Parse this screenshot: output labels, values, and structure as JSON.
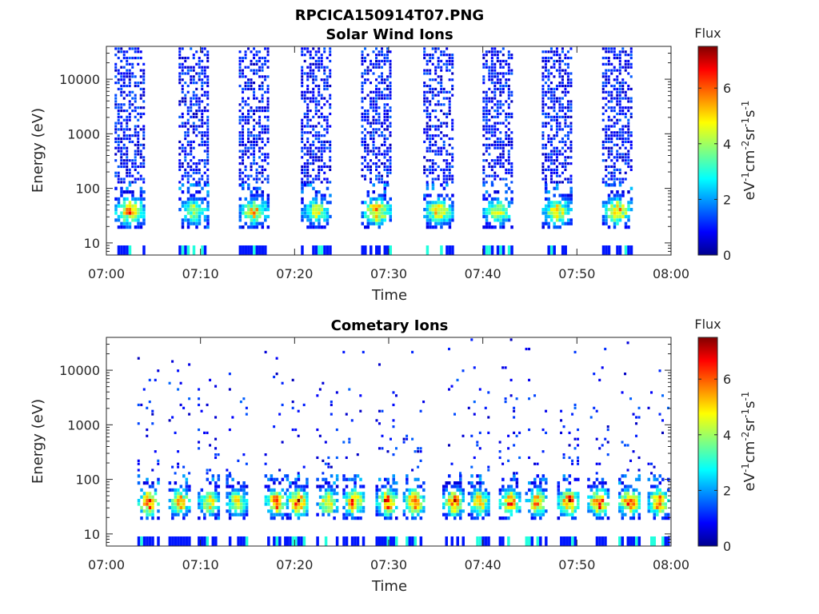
{
  "figure": {
    "filename_title": "RPCICA150914T07.PNG"
  },
  "colors": {
    "axis": "#262626",
    "background": "#ffffff",
    "colormap": "jet"
  },
  "chart_data": [
    {
      "type": "heatmap",
      "title": "Solar Wind Ions",
      "xlabel": "Time",
      "ylabel": "Energy (eV)",
      "x_ticks": [
        "07:00",
        "07:10",
        "07:20",
        "07:30",
        "07:40",
        "07:50",
        "08:00"
      ],
      "y_ticks": [
        "10",
        "100",
        "1000",
        "10000"
      ],
      "y_scale": "log",
      "ylim": [
        6,
        40000
      ],
      "xlim_minutes": [
        0,
        60
      ],
      "colorbar": {
        "title": "Flux",
        "label": "eV-1cm-2sr-1s-1",
        "label_parts": [
          {
            "t": "eV",
            "s": false
          },
          {
            "t": "-1",
            "s": true
          },
          {
            "t": "cm",
            "s": false
          },
          {
            "t": "-2",
            "s": true
          },
          {
            "t": "sr",
            "s": false
          },
          {
            "t": "-1",
            "s": true
          },
          {
            "t": "s",
            "s": false
          },
          {
            "t": "-1",
            "s": true
          }
        ],
        "ticks": [
          "0",
          "2",
          "4",
          "6"
        ],
        "range": [
          0,
          7.5
        ]
      },
      "bursts": [
        {
          "t": 2.4,
          "peak": 6.0
        },
        {
          "t": 9.2,
          "peak": 4.5
        },
        {
          "t": 15.6,
          "peak": 5.5
        },
        {
          "t": 22.2,
          "peak": 4.8
        },
        {
          "t": 28.6,
          "peak": 6.0
        },
        {
          "t": 35.2,
          "peak": 5.5
        },
        {
          "t": 41.5,
          "peak": 5.0
        },
        {
          "t": 47.8,
          "peak": 5.5
        },
        {
          "t": 54.2,
          "peak": 5.8
        }
      ]
    },
    {
      "type": "heatmap",
      "title": "Cometary Ions",
      "xlabel": "Time",
      "ylabel": "Energy (eV)",
      "x_ticks": [
        "07:00",
        "07:10",
        "07:20",
        "07:30",
        "07:40",
        "07:50",
        "08:00"
      ],
      "y_ticks": [
        "10",
        "100",
        "1000",
        "10000"
      ],
      "y_scale": "log",
      "ylim": [
        6,
        40000
      ],
      "xlim_minutes": [
        0,
        60
      ],
      "colorbar": {
        "title": "Flux",
        "label": "eV-1cm-2sr-1s-1",
        "label_parts": [
          {
            "t": "eV",
            "s": false
          },
          {
            "t": "-1",
            "s": true
          },
          {
            "t": "cm",
            "s": false
          },
          {
            "t": "-2",
            "s": true
          },
          {
            "t": "sr",
            "s": false
          },
          {
            "t": "-1",
            "s": true
          },
          {
            "t": "s",
            "s": false
          },
          {
            "t": "-1",
            "s": true
          }
        ],
        "ticks": [
          "0",
          "2",
          "4",
          "6"
        ],
        "range": [
          0,
          7.5
        ]
      },
      "bursts": [
        {
          "t": 4.4,
          "peak": 7.0
        },
        {
          "t": 7.7,
          "peak": 6.0
        },
        {
          "t": 10.8,
          "peak": 5.5
        },
        {
          "t": 13.8,
          "peak": 5.5
        },
        {
          "t": 17.9,
          "peak": 6.5
        },
        {
          "t": 20.2,
          "peak": 7.0
        },
        {
          "t": 23.4,
          "peak": 6.0
        },
        {
          "t": 26.2,
          "peak": 6.5
        },
        {
          "t": 29.7,
          "peak": 7.0
        },
        {
          "t": 32.6,
          "peak": 7.0
        },
        {
          "t": 36.8,
          "peak": 6.5
        },
        {
          "t": 39.5,
          "peak": 6.0
        },
        {
          "t": 42.8,
          "peak": 6.5
        },
        {
          "t": 45.6,
          "peak": 6.0
        },
        {
          "t": 49.0,
          "peak": 7.0
        },
        {
          "t": 52.2,
          "peak": 7.0
        },
        {
          "t": 55.5,
          "peak": 7.0
        },
        {
          "t": 58.6,
          "peak": 6.5
        }
      ]
    }
  ]
}
